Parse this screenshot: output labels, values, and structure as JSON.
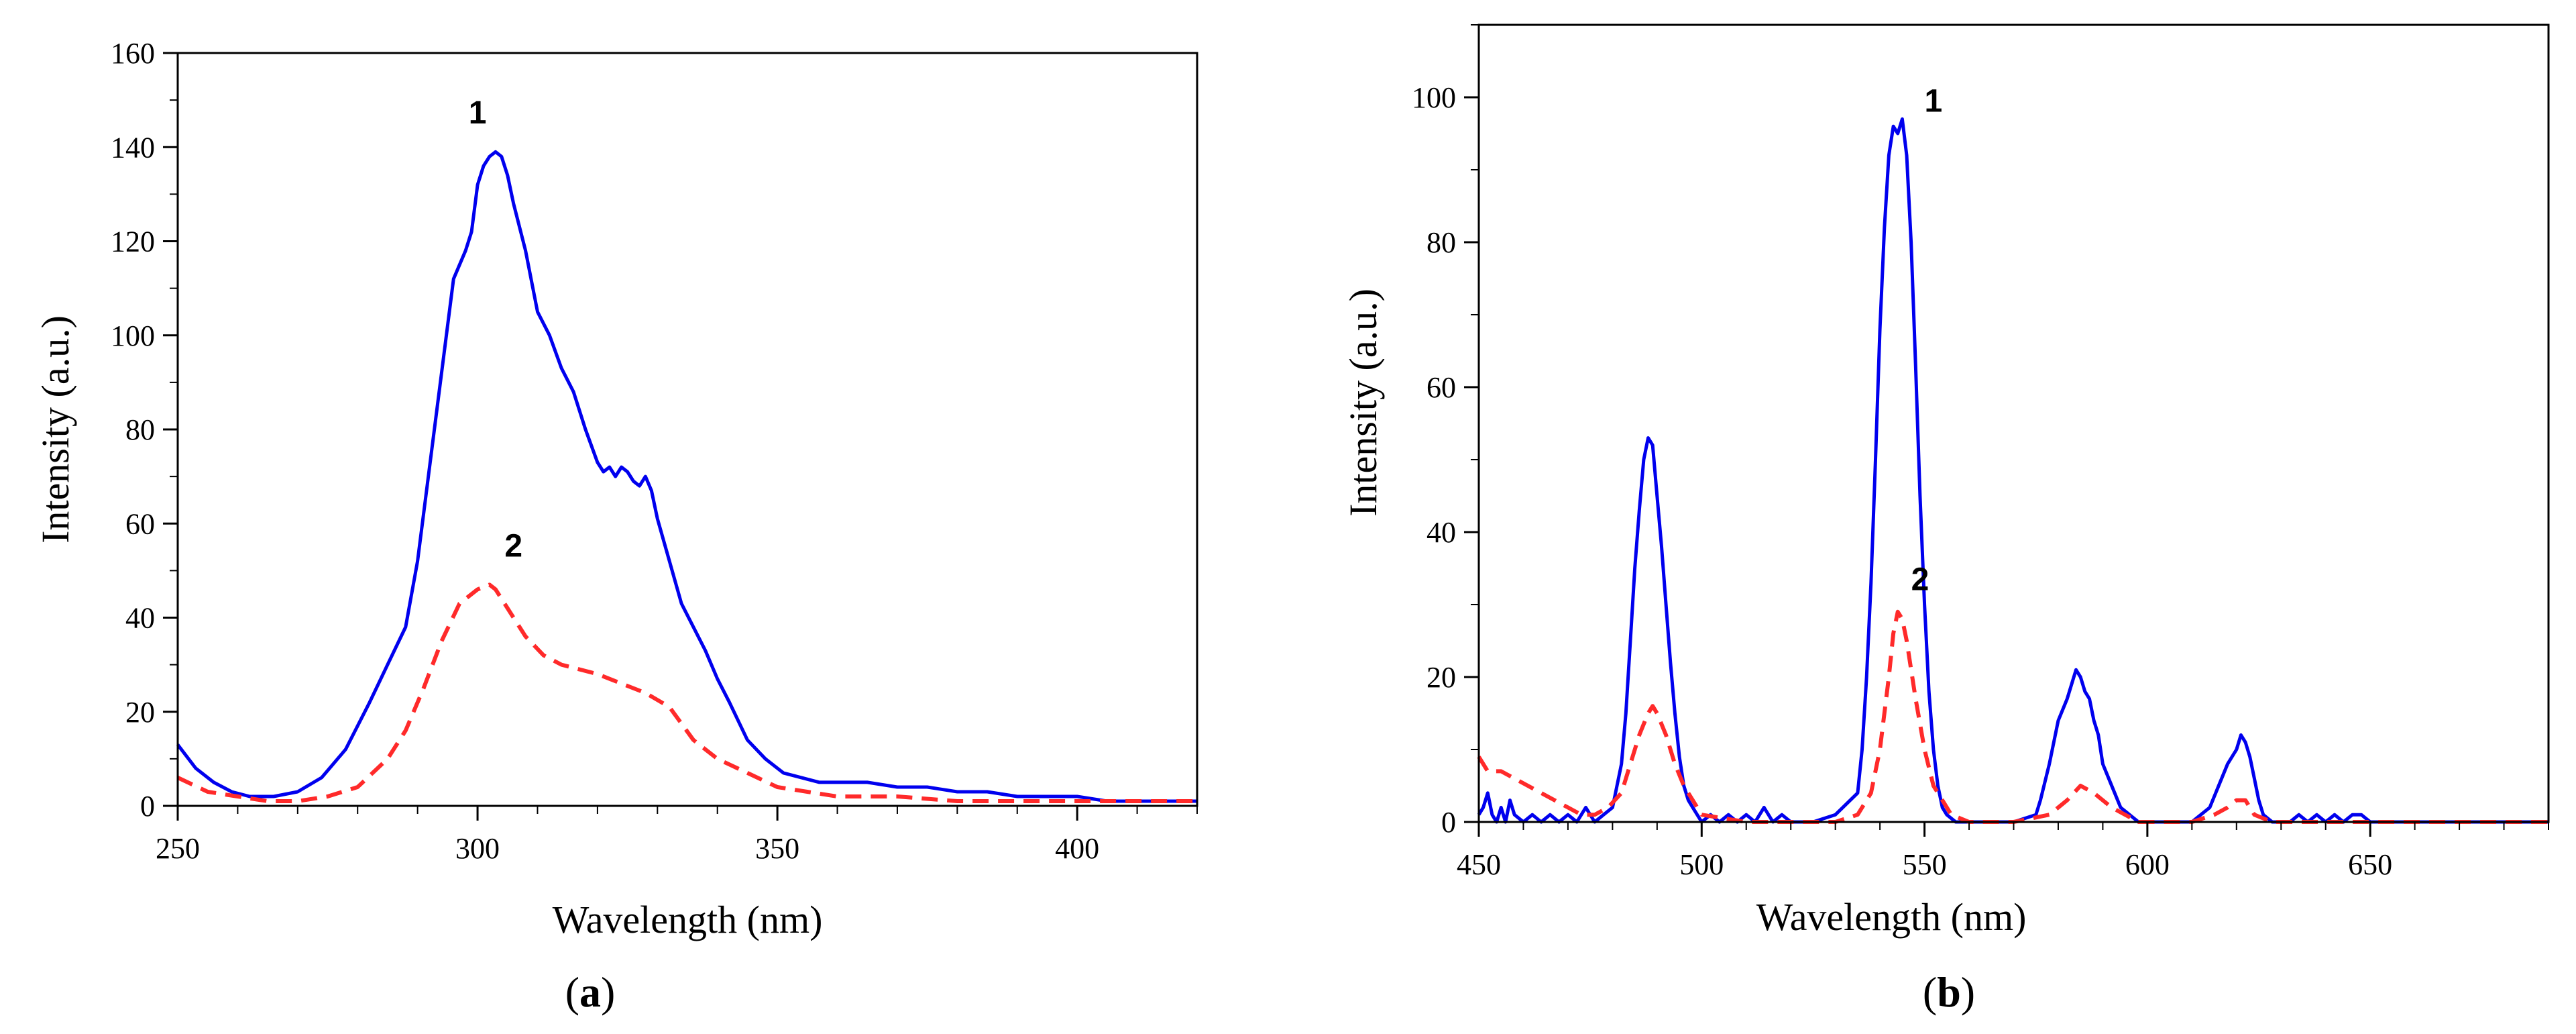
{
  "chart_data": [
    {
      "type": "line",
      "panel_label": "(a)",
      "panel_letter": "a",
      "xlabel": "Wavelength (nm)",
      "ylabel": "Intensity (a.u.)",
      "xlim": [
        250,
        420
      ],
      "ylim": [
        0,
        160
      ],
      "xticks": [
        250,
        300,
        350,
        400
      ],
      "yticks": [
        0,
        20,
        40,
        60,
        80,
        100,
        120,
        140,
        160
      ],
      "grid": false,
      "series": [
        {
          "name": "1",
          "color": "#0000ee",
          "dash": "solid",
          "x": [
            250,
            253,
            256,
            259,
            262,
            266,
            270,
            274,
            278,
            282,
            285,
            288,
            290,
            292,
            294,
            296,
            298,
            299,
            300,
            301,
            302,
            303,
            304,
            305,
            306,
            308,
            310,
            312,
            314,
            316,
            318,
            320,
            321,
            322,
            323,
            324,
            325,
            326,
            327,
            328,
            329,
            330,
            332,
            334,
            336,
            338,
            340,
            342,
            345,
            348,
            351,
            354,
            357,
            360,
            365,
            370,
            375,
            380,
            385,
            390,
            395,
            400,
            405,
            410,
            415,
            420
          ],
          "y": [
            13,
            8,
            5,
            3,
            2,
            2,
            3,
            6,
            12,
            22,
            30,
            38,
            52,
            72,
            92,
            112,
            118,
            122,
            132,
            136,
            138,
            139,
            138,
            134,
            128,
            118,
            105,
            100,
            93,
            88,
            80,
            73,
            71,
            72,
            70,
            72,
            71,
            69,
            68,
            70,
            67,
            61,
            52,
            43,
            38,
            33,
            27,
            22,
            14,
            10,
            7,
            6,
            5,
            5,
            5,
            4,
            4,
            3,
            3,
            2,
            2,
            2,
            1,
            1,
            1,
            1
          ]
        },
        {
          "name": "2",
          "color": "#ff2a2a",
          "dash": "dashed",
          "x": [
            250,
            255,
            260,
            265,
            270,
            275,
            280,
            285,
            288,
            291,
            294,
            297,
            300,
            302,
            303,
            305,
            308,
            311,
            314,
            317,
            320,
            324,
            328,
            332,
            336,
            340,
            345,
            350,
            355,
            360,
            370,
            380,
            390,
            400,
            410,
            420
          ],
          "y": [
            6,
            3,
            2,
            1,
            1,
            2,
            4,
            10,
            16,
            25,
            35,
            43,
            46,
            47,
            46,
            42,
            36,
            32,
            30,
            29,
            28,
            26,
            24,
            21,
            14,
            10,
            7,
            4,
            3,
            2,
            2,
            1,
            1,
            1,
            1,
            1
          ]
        }
      ],
      "annotations": [
        {
          "text": "1",
          "x": 300,
          "y": 145
        },
        {
          "text": "2",
          "x": 306,
          "y": 53
        }
      ]
    },
    {
      "type": "line",
      "panel_label": "(b)",
      "panel_letter": "b",
      "xlabel": "Wavelength (nm)",
      "ylabel": "Intensity (a.u.)",
      "xlim": [
        450,
        690
      ],
      "ylim": [
        0,
        110
      ],
      "xticks": [
        450,
        500,
        550,
        600,
        650
      ],
      "yticks": [
        0,
        20,
        40,
        60,
        80,
        100
      ],
      "grid": false,
      "series": [
        {
          "name": "1",
          "color": "#0000ee",
          "dash": "solid",
          "x": [
            450,
            451,
            452,
            453,
            454,
            455,
            456,
            457,
            458,
            460,
            462,
            464,
            466,
            468,
            470,
            472,
            474,
            476,
            478,
            480,
            482,
            483,
            484,
            485,
            486,
            487,
            488,
            489,
            490,
            491,
            492,
            493,
            494,
            495,
            496,
            497,
            498,
            500,
            502,
            504,
            506,
            508,
            510,
            512,
            514,
            516,
            518,
            520,
            525,
            530,
            535,
            536,
            537,
            538,
            539,
            540,
            541,
            542,
            543,
            544,
            545,
            546,
            547,
            548,
            549,
            550,
            551,
            552,
            553,
            554,
            555,
            557,
            560,
            565,
            570,
            575,
            576,
            578,
            580,
            582,
            583,
            584,
            585,
            586,
            587,
            588,
            589,
            590,
            592,
            594,
            596,
            598,
            600,
            605,
            610,
            612,
            614,
            616,
            618,
            620,
            621,
            622,
            623,
            624,
            625,
            626,
            628,
            630,
            632,
            634,
            636,
            638,
            640,
            642,
            644,
            646,
            648,
            650,
            655,
            690
          ],
          "y": [
            1,
            2,
            4,
            1,
            0,
            2,
            0,
            3,
            1,
            0,
            1,
            0,
            1,
            0,
            1,
            0,
            2,
            0,
            1,
            2,
            8,
            15,
            25,
            35,
            43,
            50,
            53,
            52,
            45,
            38,
            30,
            22,
            15,
            9,
            5,
            3,
            2,
            0,
            1,
            0,
            1,
            0,
            1,
            0,
            2,
            0,
            1,
            0,
            0,
            1,
            4,
            10,
            20,
            33,
            50,
            68,
            82,
            92,
            96,
            95,
            97,
            92,
            80,
            63,
            45,
            30,
            18,
            10,
            5,
            2,
            1,
            0,
            0,
            0,
            0,
            1,
            3,
            8,
            14,
            17,
            19,
            21,
            20,
            18,
            17,
            14,
            12,
            8,
            5,
            2,
            1,
            0,
            0,
            0,
            0,
            1,
            2,
            5,
            8,
            10,
            12,
            11,
            9,
            6,
            3,
            1,
            0,
            0,
            0,
            1,
            0,
            1,
            0,
            1,
            0,
            1,
            1,
            0,
            0,
            0
          ]
        },
        {
          "name": "2",
          "color": "#ff2a2a",
          "dash": "dashed",
          "x": [
            450,
            452,
            455,
            458,
            461,
            464,
            467,
            470,
            473,
            476,
            479,
            482,
            484,
            486,
            488,
            489,
            490,
            492,
            494,
            496,
            498,
            500,
            510,
            520,
            530,
            535,
            538,
            540,
            542,
            543,
            544,
            545,
            546,
            548,
            550,
            552,
            554,
            556,
            560,
            570,
            578,
            582,
            585,
            588,
            592,
            598,
            610,
            615,
            618,
            620,
            622,
            624,
            628,
            690
          ],
          "y": [
            9,
            7,
            7,
            6,
            5,
            4,
            3,
            2,
            1,
            1,
            2,
            4,
            8,
            12,
            15,
            16,
            15,
            12,
            8,
            5,
            3,
            1,
            0,
            0,
            0,
            1,
            4,
            10,
            20,
            26,
            29,
            28,
            25,
            17,
            10,
            5,
            3,
            1,
            0,
            0,
            1,
            3,
            5,
            4,
            2,
            0,
            0,
            1,
            2,
            3,
            3,
            1,
            0,
            0
          ]
        }
      ],
      "annotations": [
        {
          "text": "1",
          "x": 552,
          "y": 98
        },
        {
          "text": "2",
          "x": 549,
          "y": 32
        }
      ]
    }
  ]
}
